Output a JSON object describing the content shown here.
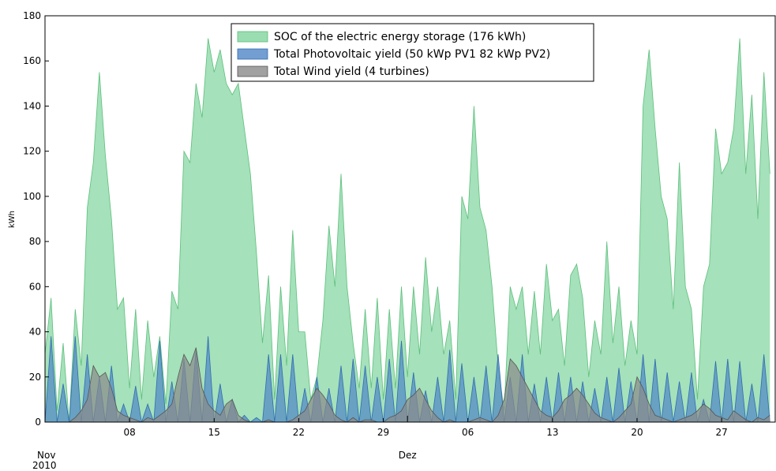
{
  "chart_data": {
    "type": "area",
    "ylabel": "kWh",
    "x": [
      "2010-11-01T00:00",
      "2010-11-01T12:00",
      "2010-11-02T00:00",
      "2010-11-02T12:00",
      "2010-11-03T00:00",
      "2010-11-03T12:00",
      "2010-11-04T00:00",
      "2010-11-04T12:00",
      "2010-11-05T00:00",
      "2010-11-05T12:00",
      "2010-11-06T00:00",
      "2010-11-06T12:00",
      "2010-11-07T00:00",
      "2010-11-07T12:00",
      "2010-11-08T00:00",
      "2010-11-08T12:00",
      "2010-11-09T00:00",
      "2010-11-09T12:00",
      "2010-11-10T00:00",
      "2010-11-10T12:00",
      "2010-11-11T00:00",
      "2010-11-11T12:00",
      "2010-11-12T00:00",
      "2010-11-12T12:00",
      "2010-11-13T00:00",
      "2010-11-13T12:00",
      "2010-11-14T00:00",
      "2010-11-14T12:00",
      "2010-11-15T00:00",
      "2010-11-15T12:00",
      "2010-11-16T00:00",
      "2010-11-16T12:00",
      "2010-11-17T00:00",
      "2010-11-17T12:00",
      "2010-11-18T00:00",
      "2010-11-18T12:00",
      "2010-11-19T00:00",
      "2010-11-19T12:00",
      "2010-11-20T00:00",
      "2010-11-20T12:00",
      "2010-11-21T00:00",
      "2010-11-21T12:00",
      "2010-11-22T00:00",
      "2010-11-22T12:00",
      "2010-11-23T00:00",
      "2010-11-23T12:00",
      "2010-11-24T00:00",
      "2010-11-24T12:00",
      "2010-11-25T00:00",
      "2010-11-25T12:00",
      "2010-11-26T00:00",
      "2010-11-26T12:00",
      "2010-11-27T00:00",
      "2010-11-27T12:00",
      "2010-11-28T00:00",
      "2010-11-28T12:00",
      "2010-11-29T00:00",
      "2010-11-29T12:00",
      "2010-11-30T00:00",
      "2010-11-30T12:00",
      "2010-12-01T00:00",
      "2010-12-01T12:00",
      "2010-12-02T00:00",
      "2010-12-02T12:00",
      "2010-12-03T00:00",
      "2010-12-03T12:00",
      "2010-12-04T00:00",
      "2010-12-04T12:00",
      "2010-12-05T00:00",
      "2010-12-05T12:00",
      "2010-12-06T00:00",
      "2010-12-06T12:00",
      "2010-12-07T00:00",
      "2010-12-07T12:00",
      "2010-12-08T00:00",
      "2010-12-08T12:00",
      "2010-12-09T00:00",
      "2010-12-09T12:00",
      "2010-12-10T00:00",
      "2010-12-10T12:00",
      "2010-12-11T00:00",
      "2010-12-11T12:00",
      "2010-12-12T00:00",
      "2010-12-12T12:00",
      "2010-12-13T00:00",
      "2010-12-13T12:00",
      "2010-12-14T00:00",
      "2010-12-14T12:00",
      "2010-12-15T00:00",
      "2010-12-15T12:00",
      "2010-12-16T00:00",
      "2010-12-16T12:00",
      "2010-12-17T00:00",
      "2010-12-17T12:00",
      "2010-12-18T00:00",
      "2010-12-18T12:00",
      "2010-12-19T00:00",
      "2010-12-19T12:00",
      "2010-12-20T00:00",
      "2010-12-20T12:00",
      "2010-12-21T00:00",
      "2010-12-21T12:00",
      "2010-12-22T00:00",
      "2010-12-22T12:00",
      "2010-12-23T00:00",
      "2010-12-23T12:00",
      "2010-12-24T00:00",
      "2010-12-24T12:00",
      "2010-12-25T00:00",
      "2010-12-25T12:00",
      "2010-12-26T00:00",
      "2010-12-26T12:00",
      "2010-12-27T00:00",
      "2010-12-27T12:00",
      "2010-12-28T00:00",
      "2010-12-28T12:00",
      "2010-12-29T00:00",
      "2010-12-29T12:00",
      "2010-12-30T00:00",
      "2010-12-30T12:00",
      "2010-12-31T00:00"
    ],
    "series": [
      {
        "name": "SOC of the electric energy storage (176 kWh)",
        "color": "#7fd49c",
        "edge": "#5cbf7c",
        "values": [
          30,
          55,
          5,
          35,
          0,
          50,
          25,
          95,
          115,
          155,
          118,
          90,
          50,
          55,
          15,
          50,
          10,
          45,
          20,
          38,
          8,
          58,
          50,
          120,
          115,
          150,
          135,
          170,
          155,
          165,
          150,
          145,
          150,
          130,
          110,
          75,
          35,
          65,
          10,
          60,
          25,
          85,
          40,
          40,
          10,
          20,
          45,
          87,
          60,
          110,
          60,
          35,
          15,
          50,
          15,
          55,
          10,
          50,
          15,
          60,
          20,
          60,
          30,
          73,
          40,
          60,
          30,
          45,
          10,
          100,
          90,
          140,
          95,
          85,
          60,
          25,
          5,
          60,
          50,
          60,
          30,
          58,
          30,
          70,
          45,
          50,
          25,
          65,
          70,
          55,
          20,
          45,
          30,
          80,
          35,
          60,
          25,
          45,
          30,
          140,
          165,
          130,
          100,
          90,
          50,
          115,
          60,
          50,
          10,
          60,
          70,
          130,
          110,
          115,
          130,
          170,
          110,
          145,
          90,
          155,
          110
        ]
      },
      {
        "name": "Total Photovoltaic yield (50 kWp PV1 82 kWp PV2)",
        "color": "#4f86c6",
        "edge": "#2f6db0",
        "values": [
          0,
          38,
          0,
          17,
          0,
          38,
          0,
          30,
          0,
          20,
          0,
          25,
          0,
          8,
          0,
          16,
          0,
          8,
          0,
          36,
          0,
          18,
          0,
          28,
          0,
          32,
          0,
          38,
          0,
          17,
          0,
          10,
          0,
          3,
          0,
          2,
          0,
          30,
          0,
          30,
          0,
          30,
          0,
          15,
          0,
          20,
          0,
          15,
          0,
          25,
          0,
          28,
          0,
          25,
          0,
          20,
          0,
          28,
          0,
          36,
          0,
          22,
          0,
          14,
          0,
          20,
          0,
          32,
          0,
          26,
          0,
          20,
          0,
          25,
          0,
          30,
          0,
          20,
          0,
          30,
          0,
          17,
          0,
          20,
          0,
          22,
          0,
          20,
          0,
          18,
          0,
          15,
          0,
          20,
          0,
          24,
          0,
          18,
          0,
          30,
          0,
          28,
          0,
          22,
          0,
          18,
          0,
          22,
          0,
          10,
          0,
          27,
          0,
          28,
          0,
          27,
          0,
          17,
          0,
          30,
          0
        ]
      },
      {
        "name": "Total Wind yield (4 turbines)",
        "color": "#8a8a8a",
        "edge": "#555555",
        "values": [
          0,
          0,
          0,
          0,
          0,
          2,
          5,
          10,
          25,
          20,
          22,
          15,
          5,
          3,
          2,
          1,
          0,
          2,
          1,
          3,
          5,
          8,
          20,
          30,
          25,
          33,
          15,
          8,
          5,
          3,
          8,
          10,
          3,
          1,
          0,
          0,
          0,
          1,
          0,
          0,
          0,
          1,
          3,
          5,
          10,
          15,
          12,
          8,
          3,
          1,
          0,
          2,
          0,
          1,
          1,
          0,
          0,
          2,
          3,
          5,
          10,
          12,
          15,
          10,
          5,
          2,
          0,
          1,
          0,
          0,
          0,
          1,
          2,
          1,
          0,
          3,
          10,
          28,
          25,
          20,
          15,
          10,
          5,
          3,
          2,
          5,
          10,
          12,
          15,
          12,
          8,
          4,
          2,
          1,
          0,
          2,
          5,
          8,
          20,
          15,
          8,
          3,
          2,
          1,
          0,
          1,
          2,
          3,
          5,
          8,
          6,
          3,
          2,
          1,
          5,
          3,
          1,
          0,
          2,
          1,
          3
        ]
      }
    ],
    "xlim": [
      "2010-11-01T00:00",
      "2010-12-31T12:00"
    ],
    "xticks": [
      {
        "value": "2010-11-08",
        "label": "08"
      },
      {
        "value": "2010-11-15",
        "label": "15"
      },
      {
        "value": "2010-11-22",
        "label": "22"
      },
      {
        "value": "2010-11-29",
        "label": "29"
      },
      {
        "value": "2010-12-06",
        "label": "06"
      },
      {
        "value": "2010-12-13",
        "label": "13"
      },
      {
        "value": "2010-12-20",
        "label": "20"
      },
      {
        "value": "2010-12-27",
        "label": "27"
      }
    ],
    "xticks_month": [
      {
        "value": "2010-11-01",
        "label": "Nov",
        "year": "2010"
      },
      {
        "value": "2010-12-01",
        "label": "Dez"
      }
    ],
    "ylim": [
      0,
      180
    ],
    "yticks": [
      0,
      20,
      40,
      60,
      80,
      100,
      120,
      140,
      160,
      180
    ],
    "legend": "upper center"
  }
}
